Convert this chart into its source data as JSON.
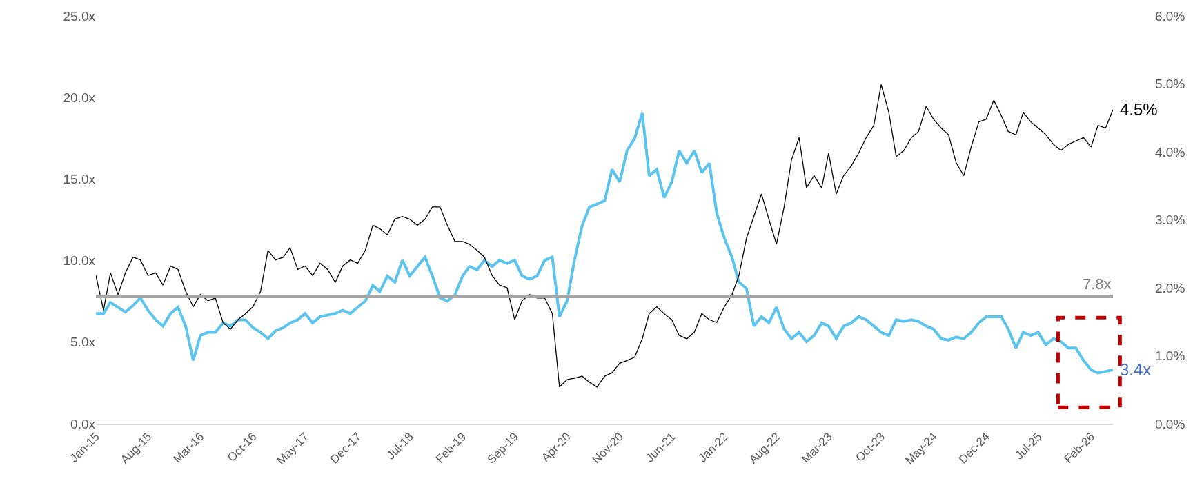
{
  "chart_data": {
    "type": "line",
    "x": [
      "2015-01",
      "2015-02",
      "2015-03",
      "2015-04",
      "2015-05",
      "2015-06",
      "2015-07",
      "2015-08",
      "2015-09",
      "2015-10",
      "2015-11",
      "2015-12",
      "2016-01",
      "2016-02",
      "2016-03",
      "2016-04",
      "2016-05",
      "2016-06",
      "2016-07",
      "2016-08",
      "2016-09",
      "2016-10",
      "2016-11",
      "2016-12",
      "2017-01",
      "2017-02",
      "2017-03",
      "2017-04",
      "2017-05",
      "2017-06",
      "2017-07",
      "2017-08",
      "2017-09",
      "2017-10",
      "2017-11",
      "2017-12",
      "2018-01",
      "2018-02",
      "2018-03",
      "2018-04",
      "2018-05",
      "2018-06",
      "2018-07",
      "2018-08",
      "2018-09",
      "2018-10",
      "2018-11",
      "2018-12",
      "2019-01",
      "2019-02",
      "2019-03",
      "2019-04",
      "2019-05",
      "2019-06",
      "2019-07",
      "2019-08",
      "2019-09",
      "2019-10",
      "2019-11",
      "2019-12",
      "2020-01",
      "2020-02",
      "2020-03",
      "2020-04",
      "2020-05",
      "2020-06",
      "2020-07",
      "2020-08",
      "2020-09",
      "2020-10",
      "2020-11",
      "2020-12",
      "2021-01",
      "2021-02",
      "2021-03",
      "2021-04",
      "2021-05",
      "2021-06",
      "2021-07",
      "2021-08",
      "2021-09",
      "2021-10",
      "2021-11",
      "2021-12",
      "2022-01",
      "2022-02",
      "2022-03",
      "2022-04",
      "2022-05",
      "2022-06",
      "2022-07",
      "2022-08",
      "2022-09",
      "2022-10",
      "2022-11",
      "2022-12",
      "2023-01",
      "2023-02",
      "2023-03",
      "2023-04",
      "2023-05",
      "2023-06",
      "2023-07",
      "2023-08",
      "2023-09",
      "2023-10",
      "2023-11",
      "2023-12",
      "2024-01",
      "2024-02",
      "2024-03",
      "2024-04",
      "2024-05",
      "2024-06",
      "2024-07",
      "2024-08",
      "2024-09",
      "2024-10",
      "2024-11",
      "2024-12",
      "2025-01",
      "2025-02",
      "2025-03",
      "2025-04",
      "2025-05",
      "2025-06",
      "2025-07",
      "2025-08",
      "2025-09",
      "2025-10",
      "2025-11",
      "2025-12",
      "2026-01",
      "2026-02",
      "2026-03",
      "2026-04",
      "2026-05"
    ],
    "series": [
      {
        "color": "#000000",
        "axis": "y2",
        "values": [
          2.18,
          1.67,
          2.22,
          1.9,
          2.22,
          2.45,
          2.41,
          2.18,
          2.22,
          2.04,
          2.32,
          2.27,
          1.95,
          1.72,
          1.9,
          1.81,
          1.85,
          1.49,
          1.39,
          1.53,
          1.62,
          1.72,
          1.95,
          2.55,
          2.41,
          2.45,
          2.59,
          2.27,
          2.32,
          2.18,
          2.36,
          2.27,
          2.08,
          2.32,
          2.41,
          2.36,
          2.55,
          2.92,
          2.87,
          2.78,
          3.01,
          3.05,
          3.01,
          2.92,
          3.01,
          3.19,
          3.19,
          2.92,
          2.68,
          2.68,
          2.64,
          2.55,
          2.45,
          2.18,
          2.04,
          2.0,
          1.53,
          1.81,
          1.9,
          1.85,
          1.85,
          1.62,
          0.54,
          0.65,
          0.67,
          0.7,
          0.61,
          0.54,
          0.7,
          0.75,
          0.89,
          0.93,
          0.98,
          1.25,
          1.62,
          1.72,
          1.62,
          1.53,
          1.3,
          1.25,
          1.35,
          1.62,
          1.53,
          1.49,
          1.72,
          1.9,
          2.18,
          2.73,
          3.05,
          3.38,
          3.01,
          2.64,
          3.19,
          3.88,
          4.21,
          3.47,
          3.65,
          3.47,
          3.98,
          3.38,
          3.65,
          3.79,
          3.98,
          4.21,
          4.39,
          4.99,
          4.58,
          3.93,
          4.02,
          4.21,
          4.3,
          4.67,
          4.48,
          4.35,
          4.25,
          3.84,
          3.65,
          4.07,
          4.44,
          4.48,
          4.76,
          4.53,
          4.3,
          4.25,
          4.58,
          4.44,
          4.35,
          4.25,
          4.11,
          4.02,
          4.11,
          4.16,
          4.21,
          4.07,
          4.39,
          4.35,
          4.62
        ]
      },
      {
        "color": "#5bc4ee",
        "values": [
          6.76,
          6.76,
          7.43,
          7.14,
          6.85,
          7.24,
          7.72,
          6.95,
          6.37,
          5.99,
          6.76,
          7.14,
          5.99,
          3.88,
          5.41,
          5.6,
          5.6,
          6.18,
          5.99,
          6.37,
          6.37,
          5.89,
          5.6,
          5.22,
          5.7,
          5.89,
          6.18,
          6.37,
          6.76,
          6.18,
          6.56,
          6.66,
          6.76,
          6.95,
          6.76,
          7.14,
          7.52,
          8.48,
          8.1,
          9.06,
          8.68,
          10.02,
          9.06,
          9.64,
          10.21,
          9.06,
          7.72,
          7.52,
          7.91,
          9.06,
          9.64,
          9.44,
          10.02,
          9.64,
          10.02,
          9.83,
          10.02,
          9.06,
          8.87,
          9.06,
          10.02,
          10.21,
          6.56,
          7.52,
          10.02,
          12.13,
          13.28,
          13.47,
          13.67,
          15.59,
          14.82,
          16.74,
          17.5,
          19.04,
          15.2,
          15.59,
          13.86,
          14.82,
          16.74,
          15.97,
          16.74,
          15.39,
          15.97,
          12.9,
          11.36,
          10.21,
          8.68,
          8.29,
          5.99,
          6.56,
          6.18,
          7.14,
          5.8,
          5.22,
          5.6,
          5.03,
          5.41,
          6.18,
          5.99,
          5.22,
          5.99,
          6.18,
          6.56,
          6.37,
          5.99,
          5.6,
          5.41,
          6.37,
          6.27,
          6.37,
          6.27,
          5.99,
          5.8,
          5.22,
          5.12,
          5.32,
          5.22,
          5.6,
          6.18,
          6.56,
          6.56,
          6.56,
          5.8,
          4.64,
          5.6,
          5.41,
          5.6,
          4.84,
          5.22,
          5.03,
          4.64,
          4.64,
          3.88,
          3.3,
          3.11,
          3.21,
          3.3
        ]
      }
    ],
    "annotations": [
      "4.5%",
      "3.4x"
    ],
    "ref_lines": [
      {
        "axis": "y",
        "value": 7.8,
        "label": "7.8x",
        "color": "#a6a6a6"
      }
    ],
    "xlim": [
      "2015-01",
      "2026-05"
    ],
    "xticks": [
      {
        "value": "2015-01",
        "label": "Jan-15"
      },
      {
        "value": "2015-08",
        "label": "Aug-15"
      },
      {
        "value": "2016-03",
        "label": "Mar-16"
      },
      {
        "value": "2016-10",
        "label": "Oct-16"
      },
      {
        "value": "2017-05",
        "label": "May-17"
      },
      {
        "value": "2017-12",
        "label": "Dec-17"
      },
      {
        "value": "2018-07",
        "label": "Jul-18"
      },
      {
        "value": "2019-02",
        "label": "Feb-19"
      },
      {
        "value": "2019-09",
        "label": "Sep-19"
      },
      {
        "value": "2020-04",
        "label": "Apr-20"
      },
      {
        "value": "2020-11",
        "label": "Nov-20"
      },
      {
        "value": "2021-06",
        "label": "Jun-21"
      },
      {
        "value": "2022-01",
        "label": "Jan-22"
      },
      {
        "value": "2022-08",
        "label": "Aug-22"
      },
      {
        "value": "2023-03",
        "label": "Mar-23"
      },
      {
        "value": "2023-10",
        "label": "Oct-23"
      },
      {
        "value": "2024-05",
        "label": "May-24"
      },
      {
        "value": "2024-12",
        "label": "Dec-24"
      },
      {
        "value": "2025-07",
        "label": "Jul-25"
      },
      {
        "value": "2026-02",
        "label": "Feb-26"
      }
    ],
    "ylim": [
      0,
      25
    ],
    "yticks": [
      {
        "value": 0,
        "label": "0.0x"
      },
      {
        "value": 5,
        "label": "5.0x"
      },
      {
        "value": 10,
        "label": "10.0x"
      },
      {
        "value": 15,
        "label": "15.0x"
      },
      {
        "value": 20,
        "label": "20.0x"
      },
      {
        "value": 25,
        "label": "25.0x"
      }
    ],
    "y2lim": [
      0,
      6
    ],
    "y2ticks": [
      {
        "value": 0,
        "label": "0.0%"
      },
      {
        "value": 1,
        "label": "1.0%"
      },
      {
        "value": 2,
        "label": "2.0%"
      },
      {
        "value": 3,
        "label": "3.0%"
      },
      {
        "value": 4,
        "label": "4.0%"
      },
      {
        "value": 5,
        "label": "5.0%"
      },
      {
        "value": 6,
        "label": "6.0%"
      }
    ]
  }
}
